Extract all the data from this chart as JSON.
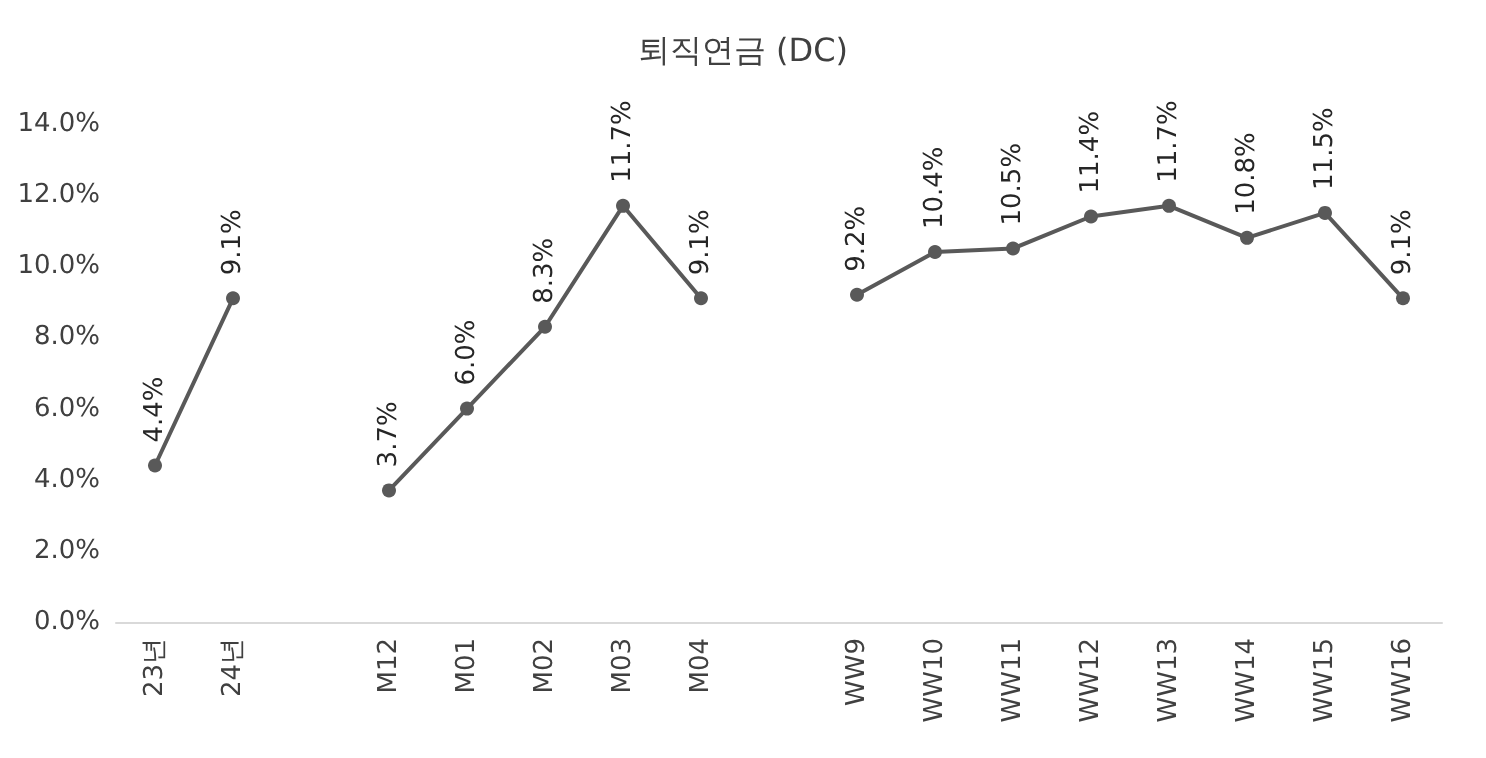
{
  "chart_data": {
    "type": "line",
    "title": "퇴직연금 (DC)",
    "categories": [
      "23년",
      "24년",
      null,
      "M12",
      "M01",
      "M02",
      "M03",
      "M04",
      null,
      "WW9",
      "WW10",
      "WW11",
      "WW12",
      "WW13",
      "WW14",
      "WW15",
      "WW16"
    ],
    "series": [
      {
        "color": "#595959",
        "values": [
          4.4,
          9.1,
          null,
          3.7,
          6.0,
          8.3,
          11.7,
          9.1,
          null,
          9.2,
          10.4,
          10.5,
          11.4,
          11.7,
          10.8,
          11.5,
          9.1
        ],
        "value_labels": [
          "4.4%",
          "9.1%",
          null,
          "3.7%",
          "6.0%",
          "8.3%",
          "11.7%",
          "9.1%",
          null,
          "9.2%",
          "10.4%",
          "10.5%",
          "11.4%",
          "11.7%",
          "10.8%",
          "11.5%",
          "9.1%"
        ]
      }
    ],
    "ylim": [
      0,
      14
    ],
    "yticks": [
      {
        "value": 0,
        "label": "0.0%"
      },
      {
        "value": 2,
        "label": "2.0%"
      },
      {
        "value": 4,
        "label": "4.0%"
      },
      {
        "value": 6,
        "label": "6.0%"
      },
      {
        "value": 8,
        "label": "8.0%"
      },
      {
        "value": 10,
        "label": "10.0%"
      },
      {
        "value": 12,
        "label": "12.0%"
      },
      {
        "value": 14,
        "label": "14.0%"
      }
    ],
    "grid": false,
    "marker": "circle",
    "line_style": "solid"
  }
}
